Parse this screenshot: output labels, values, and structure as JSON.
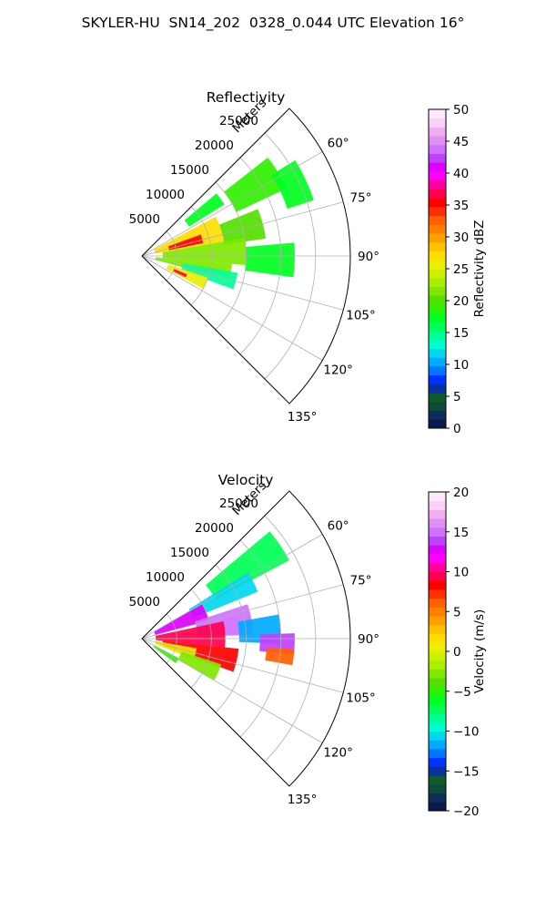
{
  "figure": {
    "suptitle": "SKYLER-HU  SN14_202  0328_0.044 UTC Elevation 16°"
  },
  "chart_data": [
    {
      "type": "heatmap",
      "projection": "polar-sector",
      "title": "Reflectivity",
      "radial_label": "Meters",
      "radial_ticks": [
        5000,
        10000,
        15000,
        20000,
        25000
      ],
      "radial_tick_labels": [
        "5000",
        "10000",
        "15000",
        "20000",
        "25000"
      ],
      "rmax": 30000,
      "angle_range_deg": [
        45,
        135
      ],
      "angle_ticks": [
        60,
        75,
        90,
        105,
        120,
        135
      ],
      "angle_tick_labels": [
        "60°",
        "75°",
        "90°",
        "105°",
        "120°",
        "135°"
      ],
      "grid": true,
      "colorbar": {
        "label": "Reflectivity dBZ",
        "range": [
          0,
          50
        ],
        "ticks": [
          0,
          5,
          10,
          15,
          20,
          25,
          30,
          35,
          40,
          45,
          50
        ],
        "tick_labels": [
          "0",
          "5",
          "10",
          "15",
          "20",
          "25",
          "30",
          "35",
          "40",
          "45",
          "50"
        ],
        "colors": [
          "#0b1a4d",
          "#0d2d57",
          "#0f4a3a",
          "#0d5c2a",
          "#0a2fa0",
          "#0033ff",
          "#0077ff",
          "#00aaff",
          "#00d8f0",
          "#00ffd0",
          "#00ff99",
          "#00ff55",
          "#00ff20",
          "#30f000",
          "#55e000",
          "#80e800",
          "#aaee00",
          "#ccf000",
          "#eeee00",
          "#ffdd00",
          "#ffc000",
          "#ffa000",
          "#ff8000",
          "#ff6000",
          "#ff3000",
          "#ff0000",
          "#ff0050",
          "#ff00a0",
          "#ff00ff",
          "#dd00ff",
          "#c040ff",
          "#d070ff",
          "#e090f0",
          "#f0b0f0",
          "#f8d0f8",
          "#fde8fd"
        ]
      },
      "echo_regions": [
        {
          "az": [
            50,
            58
          ],
          "r": [
            8000,
            14000
          ],
          "value": 17
        },
        {
          "az": [
            52,
            65
          ],
          "r": [
            15000,
            23000
          ],
          "value": 19
        },
        {
          "az": [
            58,
            72
          ],
          "r": [
            22000,
            26000
          ],
          "value": 18
        },
        {
          "az": [
            62,
            80
          ],
          "r": [
            2000,
            12000
          ],
          "value": 27
        },
        {
          "az": [
            70,
            78
          ],
          "r": [
            4000,
            9000
          ],
          "value": 36
        },
        {
          "az": [
            68,
            82
          ],
          "r": [
            12000,
            18000
          ],
          "value": 20
        },
        {
          "az": [
            80,
            95
          ],
          "r": [
            3000,
            15000
          ],
          "value": 22
        },
        {
          "az": [
            85,
            98
          ],
          "r": [
            15000,
            22000
          ],
          "value": 17
        },
        {
          "az": [
            95,
            105
          ],
          "r": [
            2000,
            13000
          ],
          "value": 21
        },
        {
          "az": [
            100,
            110
          ],
          "r": [
            6000,
            14000
          ],
          "value": 14
        },
        {
          "az": [
            108,
            118
          ],
          "r": [
            4000,
            10000
          ],
          "value": 26
        },
        {
          "az": [
            112,
            116
          ],
          "r": [
            5000,
            7000
          ],
          "value": 37
        }
      ]
    },
    {
      "type": "heatmap",
      "projection": "polar-sector",
      "title": "Velocity",
      "radial_label": "Meters",
      "radial_ticks": [
        5000,
        10000,
        15000,
        20000,
        25000
      ],
      "radial_tick_labels": [
        "5000",
        "10000",
        "15000",
        "20000",
        "25000"
      ],
      "rmax": 30000,
      "angle_range_deg": [
        45,
        135
      ],
      "angle_ticks": [
        60,
        75,
        90,
        105,
        120,
        135
      ],
      "angle_tick_labels": [
        "60°",
        "75°",
        "90°",
        "105°",
        "120°",
        "135°"
      ],
      "grid": true,
      "colorbar": {
        "label": "Velocity (m/s)",
        "range": [
          -20,
          20
        ],
        "ticks": [
          -20,
          -15,
          -10,
          -5,
          0,
          5,
          10,
          15,
          20
        ],
        "tick_labels": [
          "−20",
          "−15",
          "−10",
          "−5",
          "0",
          "5",
          "10",
          "15",
          "20"
        ],
        "colors": [
          "#0b1a4d",
          "#0d2d57",
          "#0f4a3a",
          "#0d5c2a",
          "#0a2fa0",
          "#0033ff",
          "#0077ff",
          "#00aaff",
          "#00d8f0",
          "#00ffd0",
          "#00ff99",
          "#00ff55",
          "#00ff20",
          "#30f000",
          "#55e000",
          "#80e800",
          "#aaee00",
          "#ccf000",
          "#eeee00",
          "#ffdd00",
          "#ffc000",
          "#ffa000",
          "#ff8000",
          "#ff6000",
          "#ff3000",
          "#ff0000",
          "#ff0050",
          "#ff00a0",
          "#ff00ff",
          "#dd00ff",
          "#c040ff",
          "#d070ff",
          "#e090f0",
          "#f0b0f0",
          "#f8d0f8",
          "#fde8fd"
        ]
      },
      "echo_regions": [
        {
          "az": [
            50,
            62
          ],
          "r": [
            12000,
            24000
          ],
          "value": -7
        },
        {
          "az": [
            58,
            68
          ],
          "r": [
            8000,
            18000
          ],
          "value": -11
        },
        {
          "az": [
            60,
            75
          ],
          "r": [
            2000,
            10000
          ],
          "value": 13
        },
        {
          "az": [
            72,
            88
          ],
          "r": [
            8000,
            16000
          ],
          "value": 15
        },
        {
          "az": [
            80,
            92
          ],
          "r": [
            14000,
            20000
          ],
          "value": -12
        },
        {
          "az": [
            78,
            96
          ],
          "r": [
            2000,
            12000
          ],
          "value": 9
        },
        {
          "az": [
            88,
            96
          ],
          "r": [
            17000,
            22000
          ],
          "value": 14
        },
        {
          "az": [
            94,
            100
          ],
          "r": [
            18000,
            22000
          ],
          "value": 6
        },
        {
          "az": [
            96,
            110
          ],
          "r": [
            3000,
            14000
          ],
          "value": 8
        },
        {
          "az": [
            100,
            112
          ],
          "r": [
            2000,
            8000
          ],
          "value": 1
        },
        {
          "az": [
            108,
            120
          ],
          "r": [
            6000,
            12000
          ],
          "value": -3
        },
        {
          "az": [
            118,
            126
          ],
          "r": [
            2000,
            6000
          ],
          "value": -5
        }
      ]
    }
  ]
}
